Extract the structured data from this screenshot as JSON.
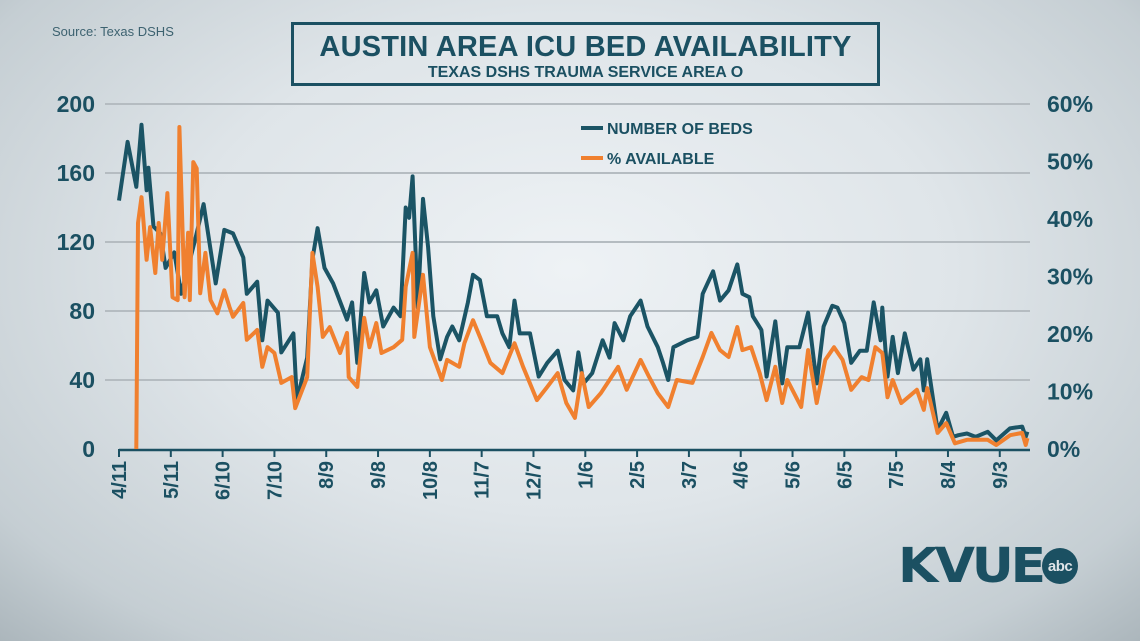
{
  "source": "Source: Texas DSHS",
  "logo": {
    "text": "KVUE",
    "badge": "abc"
  },
  "colors": {
    "beds": "#1b5465",
    "percent": "#f0802f",
    "text": "#1b5062",
    "grid": "#b5bcc1"
  },
  "chart_data": {
    "type": "line",
    "title": "AUSTIN AREA ICU BED AVAILABILITY",
    "subtitle": "TEXAS DSHS TRAUMA SERVICE AREA O",
    "xlabel": "",
    "ylabel": "",
    "x_tick_labels": [
      "4/11",
      "5/11",
      "6/10",
      "7/10",
      "8/9",
      "9/8",
      "10/8",
      "11/7",
      "12/7",
      "1/6",
      "2/5",
      "3/7",
      "4/6",
      "5/6",
      "6/5",
      "7/5",
      "8/4",
      "9/3"
    ],
    "x_tick_dates": [
      "2020-04-11",
      "2020-05-11",
      "2020-06-10",
      "2020-07-10",
      "2020-08-09",
      "2020-09-08",
      "2020-10-08",
      "2020-11-07",
      "2020-12-07",
      "2021-01-06",
      "2021-02-05",
      "2021-03-07",
      "2021-04-06",
      "2021-05-06",
      "2021-06-05",
      "2021-07-05",
      "2021-08-04",
      "2021-09-03"
    ],
    "y_left": {
      "ylim": [
        0,
        200
      ],
      "ticks": [
        "0",
        "40",
        "80",
        "120",
        "160",
        "200"
      ],
      "tick_values": [
        0,
        40,
        80,
        120,
        160,
        200
      ]
    },
    "y_right": {
      "ylim": [
        0,
        60
      ],
      "ticks": [
        "0%",
        "10%",
        "20%",
        "30%",
        "40%",
        "50%",
        "60%"
      ],
      "tick_values": [
        0,
        10,
        20,
        30,
        40,
        50,
        60
      ]
    },
    "grid": true,
    "legend_position": "top-center",
    "series": [
      {
        "name": "NUMBER OF BEDS",
        "axis": "left",
        "x": [
          "2020-04-11",
          "2020-04-16",
          "2020-04-21",
          "2020-04-24",
          "2020-04-27",
          "2020-04-28",
          "2020-05-01",
          "2020-05-05",
          "2020-05-08",
          "2020-05-13",
          "2020-05-17",
          "2020-05-25",
          "2020-05-30",
          "2020-06-06",
          "2020-06-11",
          "2020-06-16",
          "2020-06-22",
          "2020-06-24",
          "2020-06-30",
          "2020-07-03",
          "2020-07-06",
          "2020-07-12",
          "2020-07-14",
          "2020-07-21",
          "2020-07-23",
          "2020-07-27",
          "2020-07-29",
          "2020-08-01",
          "2020-08-04",
          "2020-08-08",
          "2020-08-13",
          "2020-08-21",
          "2020-08-24",
          "2020-08-27",
          "2020-08-31",
          "2020-09-03",
          "2020-09-07",
          "2020-09-11",
          "2020-09-17",
          "2020-09-21",
          "2020-09-24",
          "2020-09-26",
          "2020-09-28",
          "2020-10-01",
          "2020-10-04",
          "2020-10-07",
          "2020-10-10",
          "2020-10-14",
          "2020-10-18",
          "2020-10-21",
          "2020-10-25",
          "2020-10-30",
          "2020-11-02",
          "2020-11-06",
          "2020-11-10",
          "2020-11-16",
          "2020-11-19",
          "2020-11-23",
          "2020-11-26",
          "2020-11-29",
          "2020-12-05",
          "2020-12-10",
          "2020-12-15",
          "2020-12-21",
          "2020-12-25",
          "2020-12-30",
          "2021-01-02",
          "2021-01-05",
          "2021-01-10",
          "2021-01-16",
          "2021-01-20",
          "2021-01-23",
          "2021-01-28",
          "2021-02-01",
          "2021-02-07",
          "2021-02-11",
          "2021-02-17",
          "2021-02-20",
          "2021-02-23",
          "2021-02-26",
          "2021-03-06",
          "2021-03-12",
          "2021-03-15",
          "2021-03-21",
          "2021-03-25",
          "2021-03-30",
          "2021-04-04",
          "2021-04-07",
          "2021-04-11",
          "2021-04-13",
          "2021-04-18",
          "2021-04-21",
          "2021-04-26",
          "2021-04-30",
          "2021-05-03",
          "2021-05-10",
          "2021-05-15",
          "2021-05-20",
          "2021-05-24",
          "2021-05-29",
          "2021-06-01",
          "2021-06-05",
          "2021-06-09",
          "2021-06-14",
          "2021-06-18",
          "2021-06-22",
          "2021-06-26",
          "2021-06-27",
          "2021-06-30",
          "2021-07-03",
          "2021-07-06",
          "2021-07-10",
          "2021-07-15",
          "2021-07-19",
          "2021-07-21",
          "2021-07-23",
          "2021-07-29",
          "2021-08-03",
          "2021-08-07",
          "2021-08-10",
          "2021-08-15",
          "2021-08-20",
          "2021-08-27",
          "2021-09-01",
          "2021-09-09",
          "2021-09-16",
          "2021-09-18",
          "2021-09-19"
        ],
        "values": [
          144,
          178,
          152,
          188,
          150,
          163,
          129,
          125,
          105,
          114,
          90,
          121,
          142,
          96,
          127,
          125,
          111,
          90,
          97,
          63,
          86,
          79,
          56,
          67,
          28,
          45,
          53,
          110,
          128,
          105,
          96,
          75,
          85,
          50,
          102,
          85,
          92,
          71,
          82,
          77,
          140,
          134,
          158,
          82,
          145,
          117,
          77,
          52,
          65,
          71,
          63,
          85,
          101,
          98,
          77,
          77,
          67,
          59,
          86,
          67,
          67,
          42,
          50,
          57,
          40,
          34,
          56,
          38,
          44,
          63,
          53,
          73,
          63,
          77,
          86,
          71,
          59,
          50,
          40,
          59,
          63,
          65,
          90,
          103,
          86,
          92,
          107,
          90,
          88,
          77,
          69,
          42,
          74,
          38,
          59,
          59,
          79,
          38,
          71,
          83,
          82,
          73,
          50,
          57,
          57,
          85,
          63,
          82,
          42,
          65,
          44,
          67,
          46,
          52,
          34,
          52,
          11,
          21,
          7,
          8,
          9,
          7,
          10,
          5,
          12,
          13,
          7,
          10
        ]
      },
      {
        "name": "% AVAILABLE",
        "axis": "right",
        "x": [
          "2020-04-21",
          "2020-04-22",
          "2020-04-24",
          "2020-04-27",
          "2020-04-29",
          "2020-05-02",
          "2020-05-04",
          "2020-05-06",
          "2020-05-09",
          "2020-05-12",
          "2020-05-15",
          "2020-05-16",
          "2020-05-19",
          "2020-05-21",
          "2020-05-22",
          "2020-05-24",
          "2020-05-26",
          "2020-05-28",
          "2020-05-31",
          "2020-06-03",
          "2020-06-07",
          "2020-06-11",
          "2020-06-14",
          "2020-06-16",
          "2020-06-22",
          "2020-06-24",
          "2020-06-30",
          "2020-07-03",
          "2020-07-06",
          "2020-07-10",
          "2020-07-14",
          "2020-07-20",
          "2020-07-22",
          "2020-07-29",
          "2020-08-01",
          "2020-08-04",
          "2020-08-07",
          "2020-08-11",
          "2020-08-17",
          "2020-08-21",
          "2020-08-22",
          "2020-08-27",
          "2020-08-31",
          "2020-09-03",
          "2020-09-07",
          "2020-09-10",
          "2020-09-17",
          "2020-09-22",
          "2020-09-24",
          "2020-09-28",
          "2020-09-29",
          "2020-10-04",
          "2020-10-08",
          "2020-10-15",
          "2020-10-18",
          "2020-10-25",
          "2020-10-28",
          "2020-11-02",
          "2020-11-06",
          "2020-11-12",
          "2020-11-19",
          "2020-11-26",
          "2020-12-01",
          "2020-12-09",
          "2020-12-15",
          "2020-12-21",
          "2020-12-26",
          "2020-12-31",
          "2021-01-04",
          "2021-01-08",
          "2021-01-15",
          "2021-01-20",
          "2021-01-25",
          "2021-01-30",
          "2021-02-07",
          "2021-02-12",
          "2021-02-17",
          "2021-02-23",
          "2021-02-28",
          "2021-03-09",
          "2021-03-15",
          "2021-03-20",
          "2021-03-25",
          "2021-03-30",
          "2021-04-04",
          "2021-04-07",
          "2021-04-12",
          "2021-04-17",
          "2021-04-21",
          "2021-04-26",
          "2021-04-30",
          "2021-05-03",
          "2021-05-11",
          "2021-05-15",
          "2021-05-20",
          "2021-05-25",
          "2021-05-30",
          "2021-06-04",
          "2021-06-09",
          "2021-06-15",
          "2021-06-19",
          "2021-06-23",
          "2021-06-27",
          "2021-06-30",
          "2021-07-03",
          "2021-07-08",
          "2021-07-17",
          "2021-07-21",
          "2021-07-23",
          "2021-07-29",
          "2021-08-03",
          "2021-08-08",
          "2021-08-15",
          "2021-08-27",
          "2021-09-01",
          "2021-09-09",
          "2021-09-16",
          "2021-09-18",
          "2021-09-19"
        ],
        "values": [
          0,
          39.3,
          43.8,
          32.9,
          38.6,
          30.6,
          39.3,
          32.9,
          44.5,
          26.4,
          25.9,
          56,
          26.4,
          37.6,
          25.9,
          49.9,
          48.8,
          27.1,
          34.1,
          25.9,
          23.6,
          27.6,
          24.7,
          23,
          25.4,
          19,
          20.7,
          14.3,
          17.7,
          16.7,
          11.5,
          12.5,
          7.1,
          12.5,
          34.1,
          28.2,
          19.5,
          21.2,
          16.7,
          20.2,
          12.5,
          10.8,
          22.8,
          17.7,
          21.9,
          16.7,
          17.7,
          19,
          28.2,
          34.1,
          19.5,
          30.3,
          17.7,
          12,
          15.5,
          14.3,
          18.4,
          22.4,
          19.5,
          15,
          13.2,
          18.4,
          14.3,
          8.5,
          10.8,
          13.2,
          8,
          5.4,
          13.2,
          7.3,
          9.7,
          12,
          14.3,
          10.3,
          15.5,
          12.5,
          9.7,
          7.3,
          12,
          11.5,
          16,
          20.2,
          17.2,
          16,
          21.2,
          17.2,
          17.7,
          13.2,
          8.5,
          14.3,
          8,
          12,
          7.3,
          17.2,
          8,
          15.5,
          17.7,
          15.5,
          10.3,
          12.5,
          12,
          17.7,
          16.7,
          9,
          12,
          8,
          10.3,
          6.8,
          10.6,
          2.8,
          4.5,
          1,
          1.6,
          1.6,
          0.7,
          2.4,
          2.8,
          0.7,
          1.9
        ]
      }
    ]
  }
}
